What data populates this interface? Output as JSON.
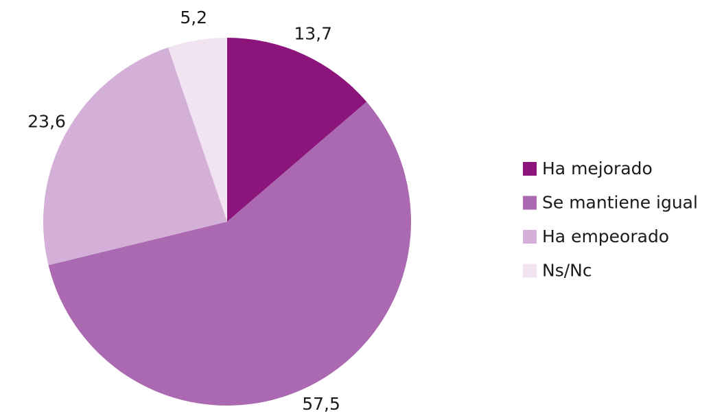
{
  "chart_data": {
    "type": "pie",
    "categories": [
      "Ha mejorado",
      "Se mantiene igual",
      "Ha empeorado",
      "Ns/Nc"
    ],
    "values": [
      13.7,
      57.5,
      23.6,
      5.2
    ],
    "value_labels": [
      "13,7",
      "57,5",
      "23,6",
      "5,2"
    ],
    "colors": [
      "#8b157b",
      "#ab69b1",
      "#d4b0d8",
      "#f1e3f0"
    ],
    "legend": "right"
  }
}
